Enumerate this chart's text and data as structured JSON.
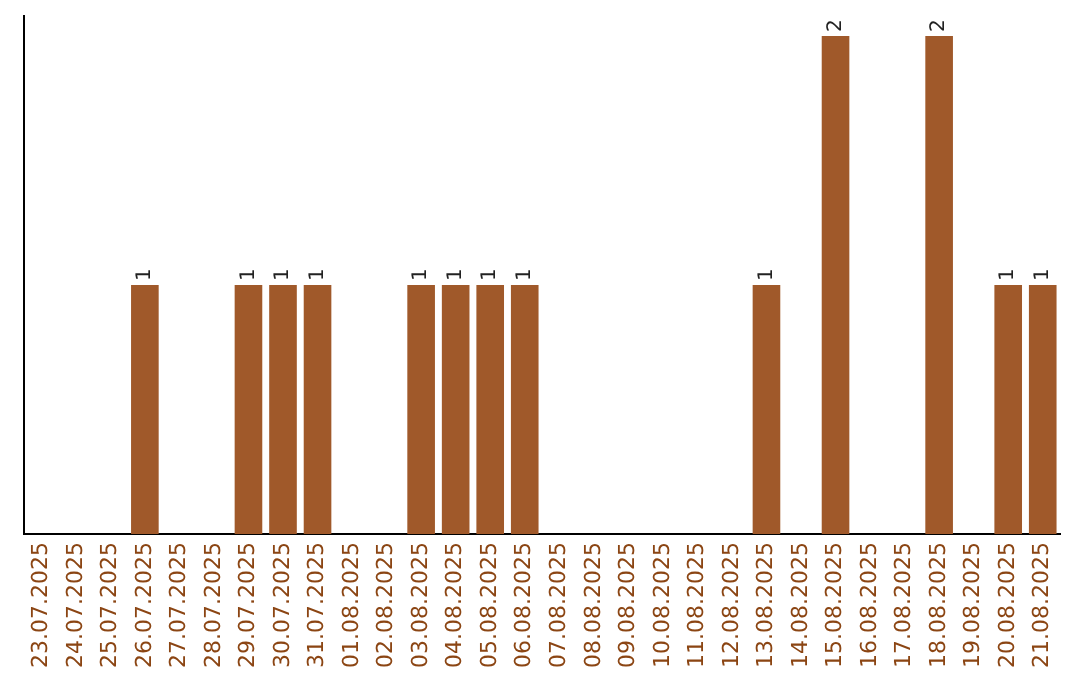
{
  "chart_data": {
    "type": "bar",
    "categories": [
      "23.07.2025",
      "24.07.2025",
      "25.07.2025",
      "26.07.2025",
      "27.07.2025",
      "28.07.2025",
      "29.07.2025",
      "30.07.2025",
      "31.07.2025",
      "01.08.2025",
      "02.08.2025",
      "03.08.2025",
      "04.08.2025",
      "05.08.2025",
      "06.08.2025",
      "07.08.2025",
      "08.08.2025",
      "09.08.2025",
      "10.08.2025",
      "11.08.2025",
      "12.08.2025",
      "13.08.2025",
      "14.08.2025",
      "15.08.2025",
      "16.08.2025",
      "17.08.2025",
      "18.08.2025",
      "19.08.2025",
      "20.08.2025",
      "21.08.2025"
    ],
    "values": [
      0,
      0,
      0,
      1,
      0,
      0,
      1,
      1,
      1,
      0,
      0,
      1,
      1,
      1,
      1,
      0,
      0,
      0,
      0,
      0,
      0,
      1,
      0,
      2,
      0,
      0,
      2,
      0,
      1,
      1
    ],
    "value_labels": [
      null,
      null,
      null,
      "1",
      null,
      null,
      "1",
      "1",
      "1",
      null,
      null,
      "1",
      "1",
      "1",
      "1",
      null,
      null,
      null,
      null,
      null,
      null,
      "1",
      null,
      "2",
      null,
      null,
      "2",
      null,
      "1",
      "1"
    ],
    "color": "#a0592a",
    "grid": false,
    "legend": false
  }
}
